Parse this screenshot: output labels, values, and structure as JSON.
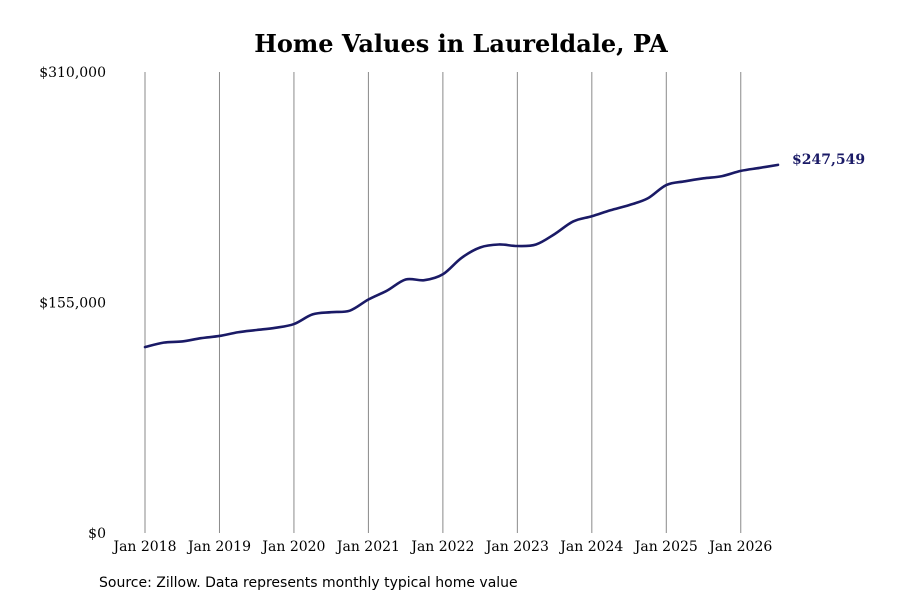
{
  "chart_data": {
    "type": "line",
    "title": "Home Values in Laureldale, PA",
    "xlabel": "",
    "ylabel": "",
    "ylim": [
      0,
      310000
    ],
    "y_ticks": [
      0,
      155000,
      310000
    ],
    "y_tick_labels": [
      "$0",
      "$155,000",
      "$310,000"
    ],
    "x_ticks": [
      "2018-01",
      "2019-01",
      "2020-01",
      "2021-01",
      "2022-01",
      "2023-01",
      "2024-01",
      "2025-01",
      "2026-01"
    ],
    "x_tick_labels": [
      "Jan 2018",
      "Jan 2019",
      "Jan 2020",
      "Jan 2021",
      "Jan 2022",
      "Jan 2023",
      "Jan 2024",
      "Jan 2025",
      "Jan 2026"
    ],
    "xlim": [
      "2018-01",
      "2026-07"
    ],
    "grid": "vertical",
    "series": [
      {
        "color": "#1a1a66",
        "points": [
          [
            "2018-01",
            125000
          ],
          [
            "2018-04",
            128000
          ],
          [
            "2018-07",
            128800
          ],
          [
            "2018-10",
            131000
          ],
          [
            "2019-01",
            132500
          ],
          [
            "2019-04",
            135000
          ],
          [
            "2019-07",
            136500
          ],
          [
            "2019-10",
            138000
          ],
          [
            "2020-01",
            140500
          ],
          [
            "2020-04",
            147000
          ],
          [
            "2020-07",
            148500
          ],
          [
            "2020-10",
            149500
          ],
          [
            "2021-01",
            157000
          ],
          [
            "2021-04",
            163000
          ],
          [
            "2021-07",
            170500
          ],
          [
            "2021-10",
            170000
          ],
          [
            "2022-01",
            174000
          ],
          [
            "2022-04",
            185000
          ],
          [
            "2022-07",
            192000
          ],
          [
            "2022-10",
            194000
          ],
          [
            "2023-01",
            193000
          ],
          [
            "2023-04",
            194000
          ],
          [
            "2023-07",
            201000
          ],
          [
            "2023-10",
            209500
          ],
          [
            "2024-01",
            213000
          ],
          [
            "2024-04",
            217000
          ],
          [
            "2024-07",
            220500
          ],
          [
            "2024-10",
            225000
          ],
          [
            "2025-01",
            234000
          ],
          [
            "2025-04",
            236500
          ],
          [
            "2025-07",
            238500
          ],
          [
            "2025-10",
            240000
          ],
          [
            "2026-01",
            243500
          ],
          [
            "2026-04",
            245500
          ],
          [
            "2026-07",
            247549
          ]
        ]
      }
    ],
    "end_label": "$247,549",
    "source": "Source: Zillow. Data represents monthly typical home value"
  }
}
